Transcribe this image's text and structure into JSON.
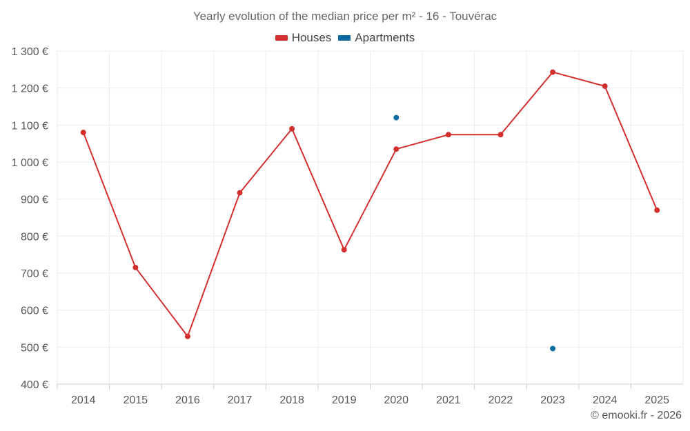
{
  "chart_data": {
    "type": "line",
    "title": "Yearly evolution of the median price per m² - 16 - Touvérac",
    "categories": [
      "2014",
      "2015",
      "2016",
      "2017",
      "2018",
      "2019",
      "2020",
      "2021",
      "2022",
      "2023",
      "2024",
      "2025"
    ],
    "series": [
      {
        "name": "Houses",
        "color": "#d32f2f",
        "values": [
          1080,
          715,
          529,
          917,
          1090,
          763,
          1035,
          1074,
          1074,
          1243,
          1205,
          870
        ]
      },
      {
        "name": "Apartments",
        "color": "#0b6aa2",
        "values": [
          null,
          null,
          null,
          null,
          null,
          null,
          1120,
          null,
          null,
          496,
          null,
          null
        ]
      }
    ],
    "y_ticks": [
      "400 €",
      "500 €",
      "600 €",
      "700 €",
      "800 €",
      "900 €",
      "1 000 €",
      "1 100 €",
      "1 200 €",
      "1 300 €"
    ],
    "ylim": [
      400,
      1300
    ],
    "xlabel": "",
    "ylabel": "",
    "grid": true,
    "legend_position": "top-center"
  },
  "credit": "© emooki.fr - 2026"
}
